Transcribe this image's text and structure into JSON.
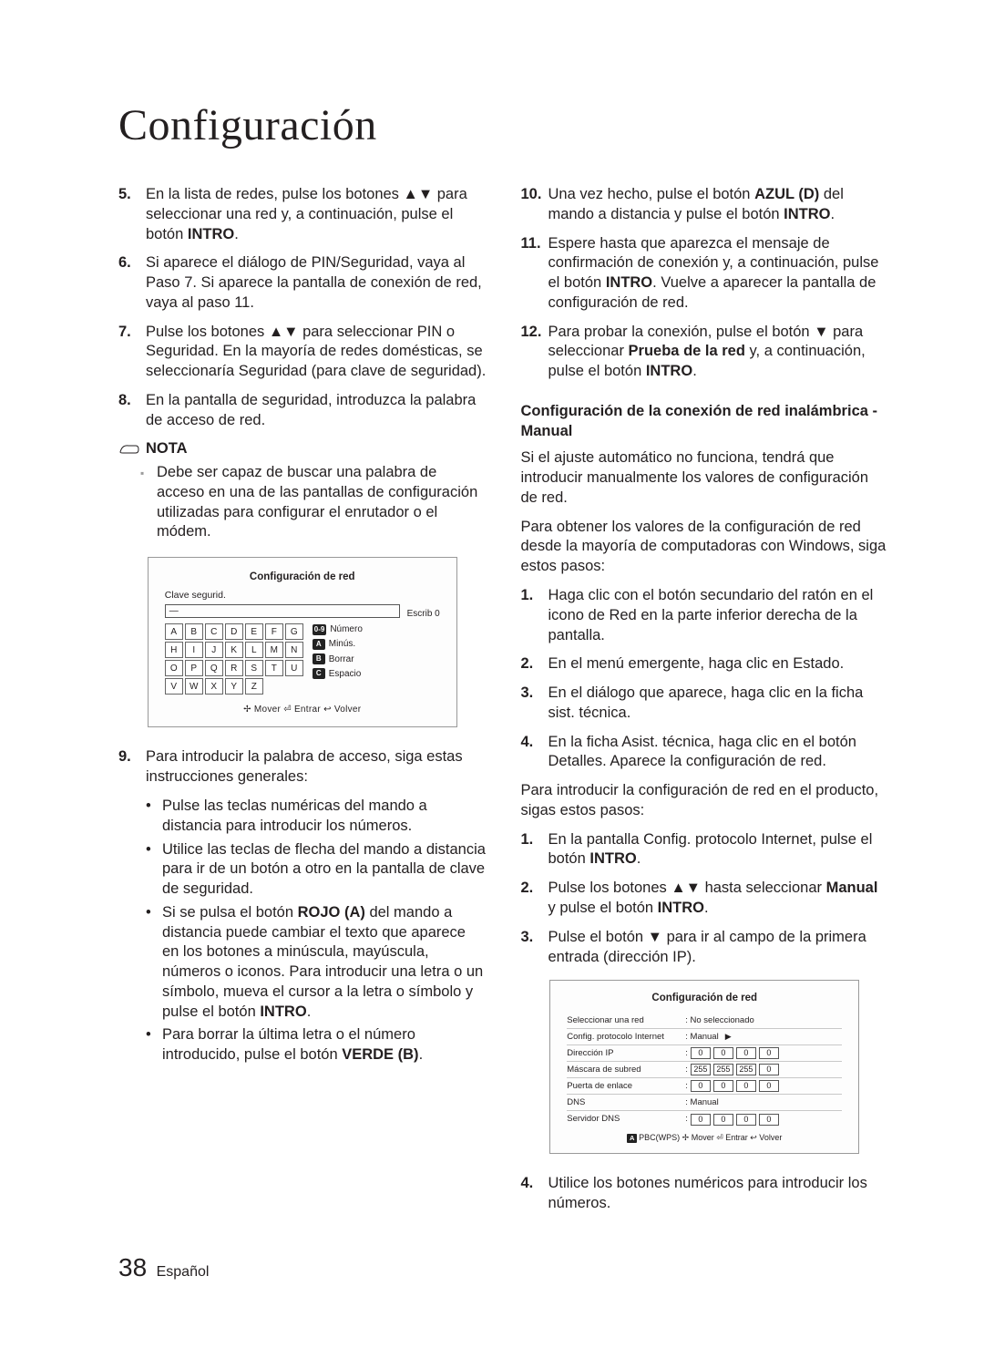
{
  "title": "Configuración",
  "left": {
    "step5": {
      "num": "5.",
      "text_a": "En la lista de redes, pulse los botones ▲▼ para seleccionar una red y, a continuación, pulse el botón ",
      "intro": "INTRO",
      "text_b": "."
    },
    "step6": {
      "num": "6.",
      "text": "Si aparece el diálogo de PIN/Seguridad, vaya al Paso 7. Si aparece la pantalla de conexión de red, vaya al paso 11."
    },
    "step7": {
      "num": "7.",
      "text": "Pulse los botones ▲▼ para seleccionar PIN o Seguridad. En la mayoría de redes domésticas, se seleccionaría Seguridad (para clave de seguridad)."
    },
    "step8": {
      "num": "8.",
      "text": "En la pantalla de seguridad, introduzca la palabra de acceso de red."
    },
    "nota_label": "NOTA",
    "nota_text": "Debe ser capaz de buscar una palabra de acceso en una de las pantallas de configuración utilizadas para configurar el enrutador o el módem.",
    "kb": {
      "title": "Configuración de red",
      "label": "Clave segurid.",
      "input": "—",
      "escrib": "Escrib 0",
      "keys": [
        "A",
        "B",
        "C",
        "D",
        "E",
        "F",
        "G",
        "H",
        "I",
        "J",
        "K",
        "L",
        "M",
        "N",
        "O",
        "P",
        "Q",
        "R",
        "S",
        "T",
        "U",
        "V",
        "W",
        "X",
        "Y",
        "Z"
      ],
      "side": [
        {
          "badge": "0-9",
          "label": "Número"
        },
        {
          "badge": "A",
          "label": "Minús."
        },
        {
          "badge": "B",
          "label": "Borrar"
        },
        {
          "badge": "C",
          "label": "Espacio"
        }
      ],
      "foot": "✢ Mover  ⏎ Entrar  ↩ Volver"
    },
    "step9": {
      "num": "9.",
      "intro": "Para introducir la palabra de acceso, siga estas instrucciones generales:",
      "subs": [
        {
          "text": "Pulse las teclas numéricas del mando a distancia para introducir los números."
        },
        {
          "text": "Utilice las teclas de flecha del mando a distancia para ir de un botón a otro en la pantalla de clave de seguridad."
        },
        {
          "text_a": "Si se pulsa el botón ",
          "bold1": "ROJO (A)",
          "text_b": " del mando a distancia puede cambiar el texto que aparece en los botones a minúscula, mayúscula, números o iconos. Para introducir una letra o un símbolo, mueva el cursor a la letra o símbolo y pulse el botón ",
          "bold2": "INTRO",
          "text_c": "."
        },
        {
          "text_a": "Para borrar la última letra o el número introducido, pulse el botón ",
          "bold1": "VERDE (B)",
          "text_b": "."
        }
      ]
    }
  },
  "right": {
    "step10": {
      "num": "10.",
      "text_a": "Una vez hecho, pulse el botón ",
      "bold1": "AZUL (D)",
      "text_b": " del mando a distancia y pulse el botón ",
      "bold2": "INTRO",
      "text_c": "."
    },
    "step11": {
      "num": "11.",
      "text_a": "Espere hasta que aparezca el mensaje de confirmación de conexión y, a continuación, pulse el botón ",
      "bold1": "INTRO",
      "text_b": ". Vuelve a aparecer la pantalla de configuración de red."
    },
    "step12": {
      "num": "12.",
      "text_a": "Para probar la conexión, pulse el botón ▼ para seleccionar ",
      "bold1": "Prueba de la red",
      "text_b": " y, a continuación, pulse el botón ",
      "bold2": "INTRO",
      "text_c": "."
    },
    "subhead": "Configuración de la conexión de red inalámbrica - Manual",
    "para1": "Si el ajuste automático no funciona, tendrá que introducir manualmente los valores de configuración de red.",
    "para2": "Para obtener los valores de la configuración de red desde la mayoría de computadoras con Windows, siga estos pasos:",
    "listA": [
      {
        "num": "1.",
        "text": "Haga clic con el botón secundario del ratón en el icono de Red en la parte inferior derecha de la pantalla."
      },
      {
        "num": "2.",
        "text": "En el menú emergente, haga clic en Estado."
      },
      {
        "num": "3.",
        "text": "En el diálogo que aparece, haga clic en la ficha sist. técnica."
      },
      {
        "num": "4.",
        "text": "En la ficha Asist. técnica, haga clic en el botón Detalles. Aparece la configuración de red."
      }
    ],
    "para3": "Para introducir la configuración de red en el producto, sigas estos pasos:",
    "listB": [
      {
        "num": "1.",
        "text_a": "En la pantalla Config. protocolo Internet, pulse el botón ",
        "bold1": "INTRO",
        "text_b": "."
      },
      {
        "num": "2.",
        "text_a": "Pulse los botones ▲▼ hasta seleccionar ",
        "bold1": "Manual",
        "text_b": " y pulse el botón ",
        "bold2": "INTRO",
        "text_c": "."
      },
      {
        "num": "3.",
        "text": "Pulse el botón ▼ para ir al campo de la primera entrada (dirección IP)."
      }
    ],
    "net": {
      "title": "Configuración de red",
      "rows": [
        {
          "label": "Seleccionar una red",
          "value": ": No seleccionado"
        },
        {
          "label": "Config. protocolo Internet",
          "value": ": Manual",
          "arrow": "▶"
        },
        {
          "label": "Dirección IP",
          "ip": [
            "0",
            "0",
            "0",
            "0"
          ]
        },
        {
          "label": "Máscara de subred",
          "ip": [
            "255",
            "255",
            "255",
            "0"
          ]
        },
        {
          "label": "Puerta de enlace",
          "ip": [
            "0",
            "0",
            "0",
            "0"
          ]
        },
        {
          "label": "DNS",
          "value": ": Manual"
        },
        {
          "label": "Servidor DNS",
          "ip": [
            "0",
            "0",
            "0",
            "0"
          ]
        }
      ],
      "foot_badge": "A",
      "foot": "PBC(WPS)  ✢ Mover  ⏎ Entrar  ↩ Volver"
    },
    "step4_after": {
      "num": "4.",
      "text": "Utilice los botones numéricos para introducir los números."
    }
  },
  "footer": {
    "page": "38",
    "lang": "Español"
  }
}
